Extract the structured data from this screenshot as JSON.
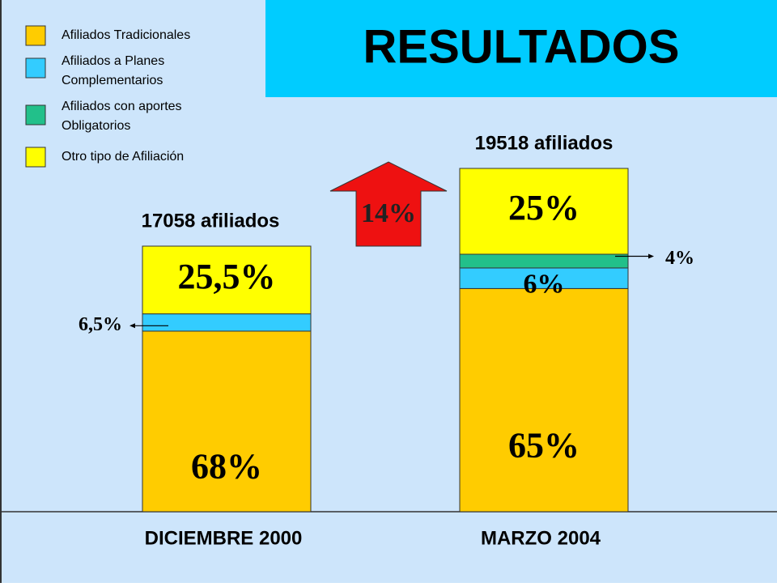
{
  "chart_data": {
    "type": "stacked_bar",
    "title": "RESULTADOS",
    "categories": [
      "DICIEMBRE 2000",
      "MARZO 2004"
    ],
    "series": [
      {
        "name": "Afiliados Tradicionales",
        "color": "#ffcc00",
        "values": [
          68,
          65
        ],
        "value_labels": [
          "68%",
          "65%"
        ]
      },
      {
        "name": "Afiliados a Planes Complementarios",
        "color": "#33ccff",
        "values": [
          6.5,
          6
        ],
        "value_labels": [
          "6,5%",
          "6%"
        ]
      },
      {
        "name": "Afiliados con aportes Obligatorios",
        "color": "#22c08a",
        "values": [
          null,
          4
        ],
        "value_labels": [
          null,
          "4%"
        ]
      },
      {
        "name": "Otro tipo de Afiliación",
        "color": "#ffff00",
        "values": [
          25.5,
          25
        ],
        "value_labels": [
          "25,5%",
          "25%"
        ]
      }
    ],
    "annotations": {
      "totals": [
        "17058 afiliados",
        "19518 afiliados"
      ],
      "growth": "14%"
    }
  }
}
